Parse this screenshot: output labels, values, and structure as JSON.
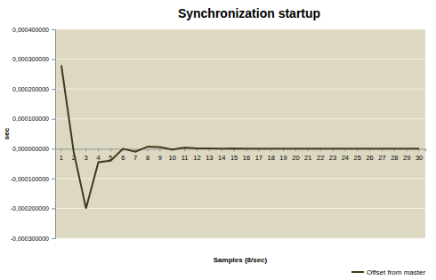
{
  "chart_data": {
    "type": "line",
    "title": "Synchronization startup",
    "x_label": "Samples (8/sec)",
    "y_label": "sec",
    "categories": [
      "1",
      "2",
      "3",
      "4",
      "5",
      "6",
      "7",
      "8",
      "9",
      "10",
      "11",
      "12",
      "13",
      "14",
      "15",
      "16",
      "17",
      "18",
      "19",
      "20",
      "21",
      "22",
      "23",
      "24",
      "25",
      "26",
      "27",
      "28",
      "29",
      "30"
    ],
    "series": [
      {
        "name": "Offset from master",
        "color": "#3f3a1c",
        "values": [
          0.00028,
          -1e-05,
          -0.0002,
          -4.5e-05,
          -4e-05,
          0.0,
          -1e-05,
          7e-06,
          5e-06,
          -3e-06,
          4e-06,
          5e-07,
          1e-06,
          0.0,
          1e-06,
          0.0,
          0.0,
          0.0,
          0.0,
          0.0,
          0.0,
          0.0,
          0.0,
          0.0,
          0.0,
          0.0,
          0.0,
          0.0,
          0.0,
          0.0
        ]
      }
    ],
    "ylim": [
      -0.0003,
      0.0004
    ],
    "yticks": [
      {
        "value": -0.0003,
        "label": "-0,000300000"
      },
      {
        "value": -0.0002,
        "label": "-0,000200000"
      },
      {
        "value": -0.0001,
        "label": "-0,000100000"
      },
      {
        "value": 0,
        "label": "0,000000000"
      },
      {
        "value": 0.0001,
        "label": "0,000100000"
      },
      {
        "value": 0.0002,
        "label": "0,000200000"
      },
      {
        "value": 0.0003,
        "label": "0,000300000"
      },
      {
        "value": 0.0004,
        "label": "0,000400000"
      }
    ],
    "grid": true,
    "legend": "bottom-right"
  }
}
